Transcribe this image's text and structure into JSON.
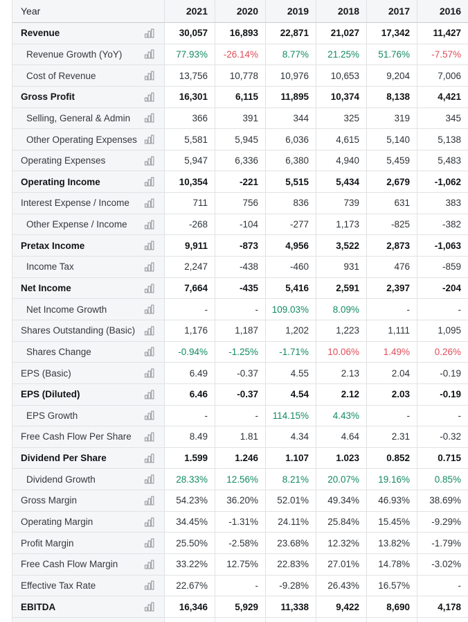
{
  "table": {
    "header": {
      "label": "Year",
      "years": [
        "2021",
        "2020",
        "2019",
        "2018",
        "2017",
        "2016"
      ]
    },
    "rows": [
      {
        "label": "Revenue",
        "bold": true,
        "values": [
          "30,057",
          "16,893",
          "22,871",
          "21,027",
          "17,342",
          "11,427"
        ]
      },
      {
        "label": "Revenue Growth (YoY)",
        "indent": true,
        "values": [
          "77.93%",
          "-26.14%",
          "8.77%",
          "21.25%",
          "51.76%",
          "-7.57%"
        ],
        "value_colors": [
          "g",
          "r",
          "g",
          "g",
          "g",
          "r"
        ]
      },
      {
        "label": "Cost of Revenue",
        "indent": true,
        "values": [
          "13,756",
          "10,778",
          "10,976",
          "10,653",
          "9,204",
          "7,006"
        ]
      },
      {
        "label": "Gross Profit",
        "bold": true,
        "values": [
          "16,301",
          "6,115",
          "11,895",
          "10,374",
          "8,138",
          "4,421"
        ]
      },
      {
        "label": "Selling, General & Admin",
        "indent": true,
        "values": [
          "366",
          "391",
          "344",
          "325",
          "319",
          "345"
        ]
      },
      {
        "label": "Other Operating Expenses",
        "indent": true,
        "values": [
          "5,581",
          "5,945",
          "6,036",
          "4,615",
          "5,140",
          "5,138"
        ]
      },
      {
        "label": "Operating Expenses",
        "values": [
          "5,947",
          "6,336",
          "6,380",
          "4,940",
          "5,459",
          "5,483"
        ]
      },
      {
        "label": "Operating Income",
        "bold": true,
        "values": [
          "10,354",
          "-221",
          "5,515",
          "5,434",
          "2,679",
          "-1,062"
        ]
      },
      {
        "label": "Interest Expense / Income",
        "values": [
          "711",
          "756",
          "836",
          "739",
          "631",
          "383"
        ]
      },
      {
        "label": "Other Expense / Income",
        "indent": true,
        "values": [
          "-268",
          "-104",
          "-277",
          "1,173",
          "-825",
          "-382"
        ]
      },
      {
        "label": "Pretax Income",
        "bold": true,
        "values": [
          "9,911",
          "-873",
          "4,956",
          "3,522",
          "2,873",
          "-1,063"
        ]
      },
      {
        "label": "Income Tax",
        "indent": true,
        "values": [
          "2,247",
          "-438",
          "-460",
          "931",
          "476",
          "-859"
        ]
      },
      {
        "label": "Net Income",
        "bold": true,
        "values": [
          "7,664",
          "-435",
          "5,416",
          "2,591",
          "2,397",
          "-204"
        ]
      },
      {
        "label": "Net Income Growth",
        "indent": true,
        "values": [
          "-",
          "-",
          "109.03%",
          "8.09%",
          "-",
          "-"
        ],
        "value_colors": [
          null,
          null,
          "g",
          "g",
          null,
          null
        ]
      },
      {
        "label": "Shares Outstanding (Basic)",
        "values": [
          "1,176",
          "1,187",
          "1,202",
          "1,223",
          "1,111",
          "1,095"
        ]
      },
      {
        "label": "Shares Change",
        "indent": true,
        "values": [
          "-0.94%",
          "-1.25%",
          "-1.71%",
          "10.06%",
          "1.49%",
          "0.26%"
        ],
        "value_colors": [
          "g",
          "g",
          "g",
          "r",
          "r",
          "r"
        ]
      },
      {
        "label": "EPS (Basic)",
        "values": [
          "6.49",
          "-0.37",
          "4.55",
          "2.13",
          "2.04",
          "-0.19"
        ]
      },
      {
        "label": "EPS (Diluted)",
        "bold": true,
        "values": [
          "6.46",
          "-0.37",
          "4.54",
          "2.12",
          "2.03",
          "-0.19"
        ]
      },
      {
        "label": "EPS Growth",
        "indent": true,
        "values": [
          "-",
          "-",
          "114.15%",
          "4.43%",
          "-",
          "-"
        ],
        "value_colors": [
          null,
          null,
          "g",
          "g",
          null,
          null
        ]
      },
      {
        "label": "Free Cash Flow Per Share",
        "values": [
          "8.49",
          "1.81",
          "4.34",
          "4.64",
          "2.31",
          "-0.32"
        ]
      },
      {
        "label": "Dividend Per Share",
        "bold": true,
        "values": [
          "1.599",
          "1.246",
          "1.107",
          "1.023",
          "0.852",
          "0.715"
        ]
      },
      {
        "label": "Dividend Growth",
        "indent": true,
        "values": [
          "28.33%",
          "12.56%",
          "8.21%",
          "20.07%",
          "19.16%",
          "0.85%"
        ],
        "value_colors": [
          "g",
          "g",
          "g",
          "g",
          "g",
          "g"
        ]
      },
      {
        "label": "Gross Margin",
        "values": [
          "54.23%",
          "36.20%",
          "52.01%",
          "49.34%",
          "46.93%",
          "38.69%"
        ]
      },
      {
        "label": "Operating Margin",
        "values": [
          "34.45%",
          "-1.31%",
          "24.11%",
          "25.84%",
          "15.45%",
          "-9.29%"
        ]
      },
      {
        "label": "Profit Margin",
        "values": [
          "25.50%",
          "-2.58%",
          "23.68%",
          "12.32%",
          "13.82%",
          "-1.79%"
        ]
      },
      {
        "label": "Free Cash Flow Margin",
        "values": [
          "33.22%",
          "12.75%",
          "22.83%",
          "27.01%",
          "14.78%",
          "-3.02%"
        ]
      },
      {
        "label": "Effective Tax Rate",
        "values": [
          "22.67%",
          "-",
          "-9.28%",
          "26.43%",
          "16.57%",
          "-"
        ]
      },
      {
        "label": "EBITDA",
        "bold": true,
        "values": [
          "16,346",
          "5,929",
          "11,338",
          "9,422",
          "8,690",
          "4,178"
        ]
      }
    ]
  },
  "icons": {
    "row_icon": "bar-chart-icon"
  },
  "colors": {
    "positive": "#118a62",
    "negative": "#e04c58",
    "header_bg": "#f5f6f7",
    "row_border": "#e0e2e5",
    "header_border": "#c7cacd"
  }
}
